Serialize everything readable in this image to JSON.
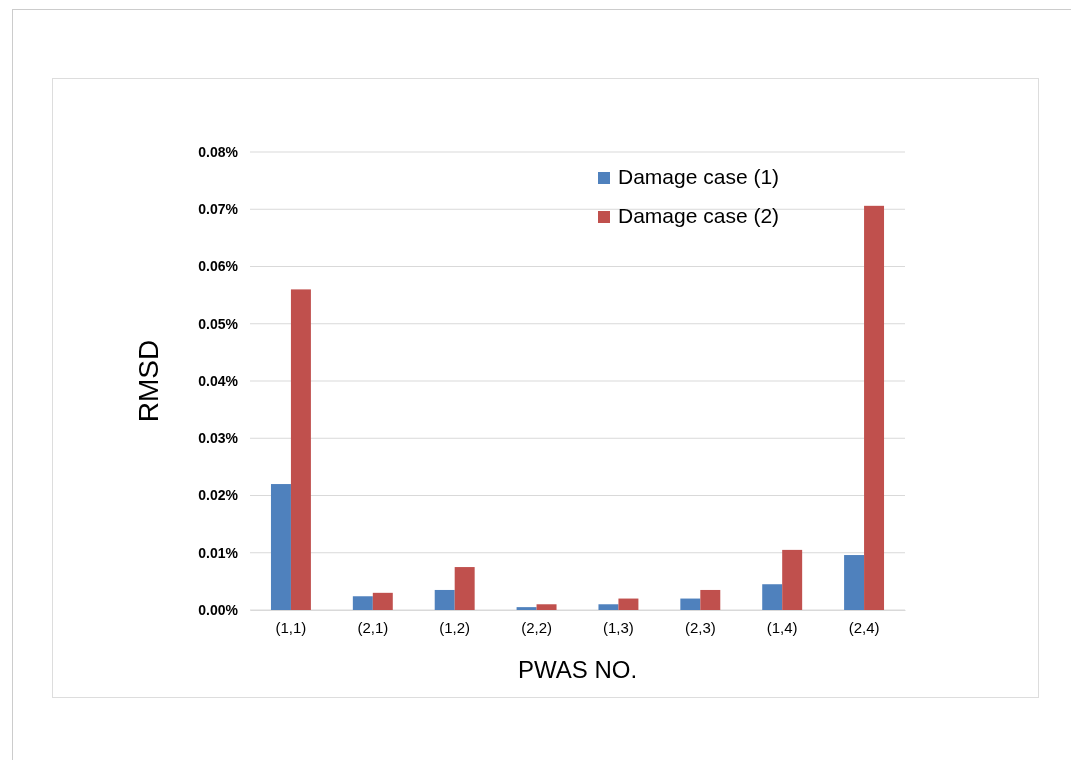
{
  "chart_data": {
    "type": "bar",
    "xlabel": "PWAS NO.",
    "ylabel": "RMSD",
    "categories": [
      "(1,1)",
      "(2,1)",
      "(1,2)",
      "(2,2)",
      "(1,3)",
      "(2,3)",
      "(1,4)",
      "(2,4)"
    ],
    "series": [
      {
        "name": "Damage case (1)",
        "color": "#4f81bd",
        "values": [
          0.022,
          0.0024,
          0.0035,
          0.0005,
          0.001,
          0.002,
          0.0045,
          0.0096
        ]
      },
      {
        "name": "Damage case (2)",
        "color": "#c0504d",
        "values": [
          0.056,
          0.003,
          0.0075,
          0.001,
          0.002,
          0.0035,
          0.0105,
          0.0706
        ]
      }
    ],
    "ylim": [
      0,
      0.08
    ],
    "yticks": [
      {
        "value": 0,
        "label": "0.00%"
      },
      {
        "value": 0.01,
        "label": "0.01%"
      },
      {
        "value": 0.02,
        "label": "0.02%"
      },
      {
        "value": 0.03,
        "label": "0.03%"
      },
      {
        "value": 0.04,
        "label": "0.04%"
      },
      {
        "value": 0.05,
        "label": "0.05%"
      },
      {
        "value": 0.06,
        "label": "0.06%"
      },
      {
        "value": 0.07,
        "label": "0.07%"
      },
      {
        "value": 0.08,
        "label": "0.08%"
      }
    ],
    "grid": "y",
    "legend": "top right"
  }
}
